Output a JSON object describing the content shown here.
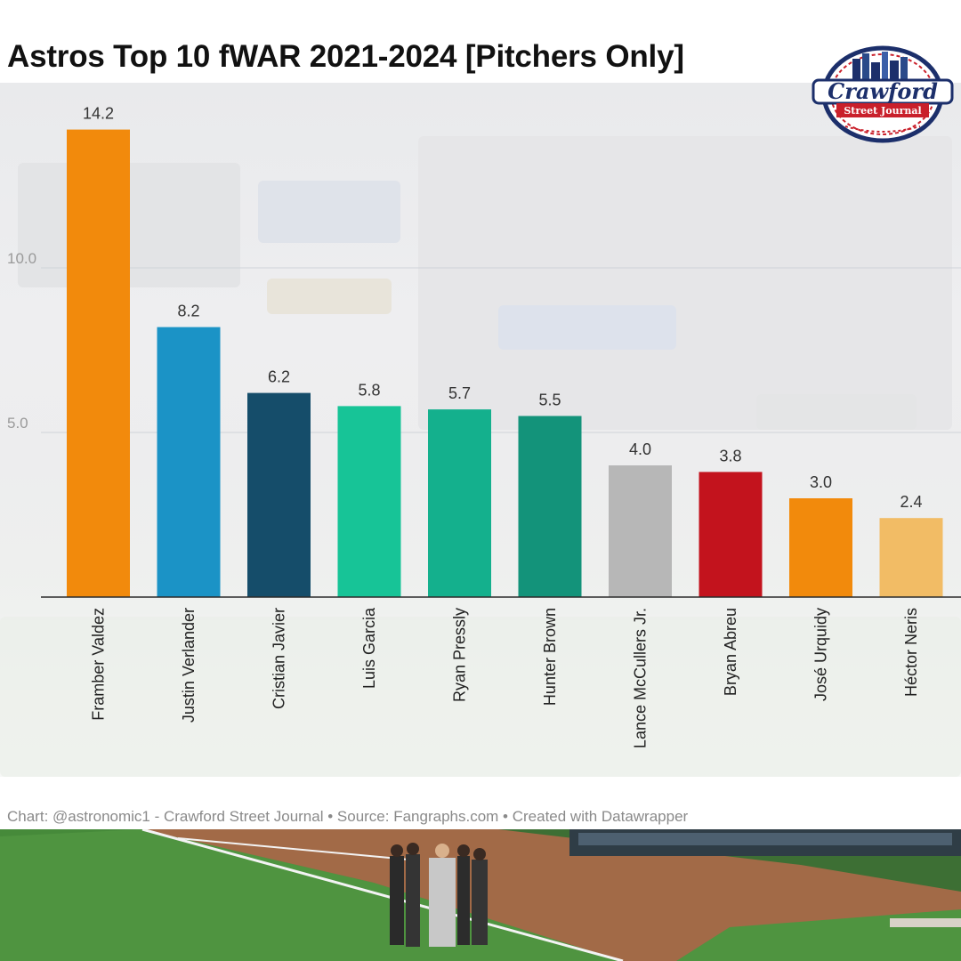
{
  "header": {
    "title": "Astros Top 10 fWAR 2021-2024 [Pitchers Only]"
  },
  "logo": {
    "line1": "Crawford",
    "line2": "Street Journal"
  },
  "footer": {
    "credit": "Chart: @astronomic1 - Crawford Street Journal • Source: Fangraphs.com • Created with Datawrapper"
  },
  "chart_data": {
    "type": "bar",
    "title": "Astros Top 10 fWAR 2021-2024 [Pitchers Only]",
    "categories": [
      "Framber Valdez",
      "Justin Verlander",
      "Cristian Javier",
      "Luis Garcia",
      "Ryan Pressly",
      "Hunter Brown",
      "Lance McCullers Jr.",
      "Bryan Abreu",
      "José Urquidy",
      "Héctor Neris"
    ],
    "values": [
      14.2,
      8.2,
      6.2,
      5.8,
      5.7,
      5.5,
      4.0,
      3.8,
      3.0,
      2.4
    ],
    "value_labels": [
      "14.2",
      "8.2",
      "6.2",
      "5.8",
      "5.7",
      "5.5",
      "4.0",
      "3.8",
      "3.0",
      "2.4"
    ],
    "colors": [
      "#f28a0c",
      "#1b93c6",
      "#154d6a",
      "#17c497",
      "#14b08d",
      "#13937a",
      "#b7b7b7",
      "#c3131d",
      "#f28a0c",
      "#f2bc65"
    ],
    "yticks": [
      5,
      10
    ],
    "ytick_labels": [
      "5.0",
      "10.0"
    ],
    "ylim": [
      0,
      15
    ],
    "grid": true,
    "xlabel": "",
    "ylabel": ""
  }
}
